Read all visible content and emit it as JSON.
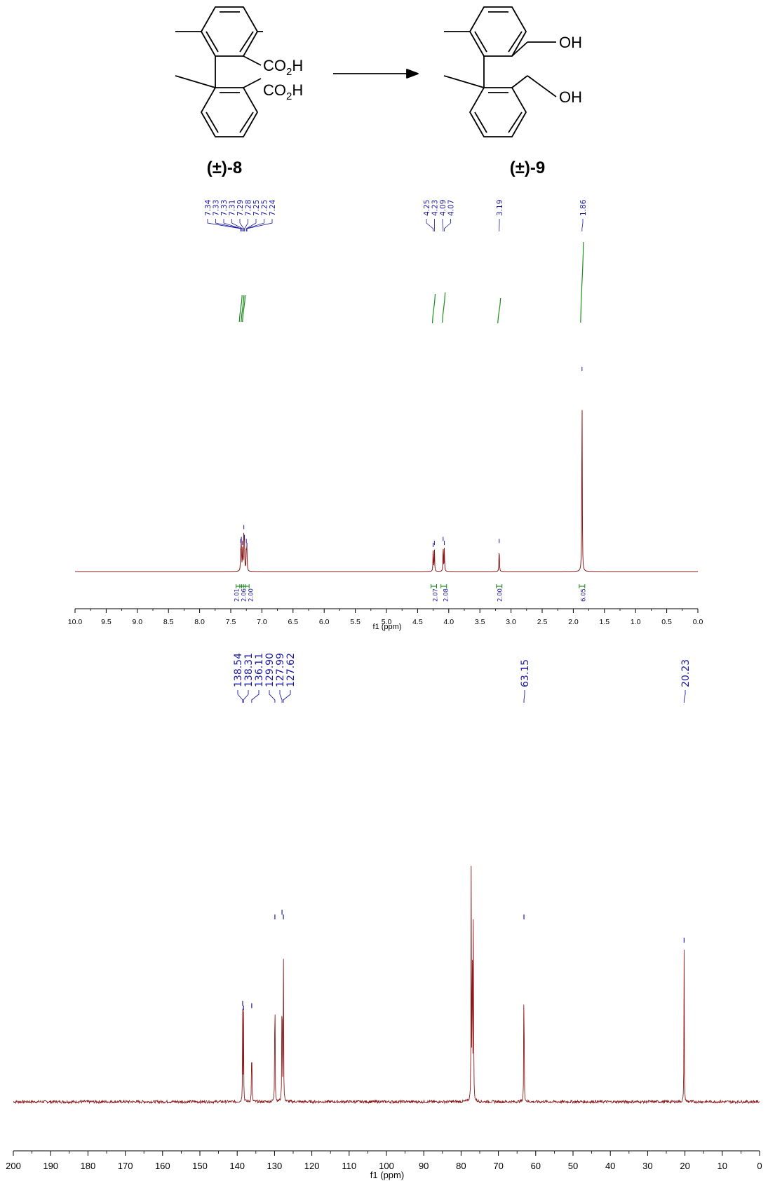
{
  "scheme": {
    "reactant_label": "(±)-8",
    "product_label": "(±)-9",
    "reactant_groups": {
      "acid1_pre": "CO",
      "acid1_sub": "2",
      "acid1_post": "H",
      "acid2_pre": "CO",
      "acid2_sub": "2",
      "acid2_post": "H"
    },
    "product_groups": {
      "oh1": "OH",
      "oh2": "OH"
    }
  },
  "colors": {
    "spectrum": "#8b1a1a",
    "peak_label": "#1a1aa0",
    "integral": "#1e8c1e",
    "axis": "#000000"
  },
  "chart_data": [
    {
      "type": "line",
      "title": "",
      "xlabel": "f1 (ppm)",
      "xlim": [
        10.0,
        0.0
      ],
      "x_ticks": [
        "10.0",
        "9.5",
        "9.0",
        "8.5",
        "8.0",
        "7.5",
        "7.0",
        "6.5",
        "6.0",
        "5.5",
        "5.0",
        "4.5",
        "4.0",
        "3.5",
        "3.0",
        "2.5",
        "2.0",
        "1.5",
        "1.0",
        "0.5",
        "0.0"
      ],
      "peak_labels": [
        "7.34",
        "7.33",
        "7.33",
        "7.31",
        "7.29",
        "7.28",
        "7.25",
        "7.25",
        "7.24",
        "4.25",
        "4.23",
        "4.09",
        "4.07",
        "3.19",
        "1.86"
      ],
      "peaks": [
        {
          "x": 7.34,
          "y": 0.13
        },
        {
          "x": 7.33,
          "y": 0.14
        },
        {
          "x": 7.31,
          "y": 0.12
        },
        {
          "x": 7.29,
          "y": 0.2
        },
        {
          "x": 7.28,
          "y": 0.15
        },
        {
          "x": 7.25,
          "y": 0.13
        },
        {
          "x": 7.24,
          "y": 0.11
        },
        {
          "x": 4.25,
          "y": 0.11
        },
        {
          "x": 4.23,
          "y": 0.12
        },
        {
          "x": 4.09,
          "y": 0.14
        },
        {
          "x": 4.07,
          "y": 0.12
        },
        {
          "x": 3.19,
          "y": 0.13
        },
        {
          "x": 1.86,
          "y": 1.0
        }
      ],
      "integrals": [
        {
          "x": 7.34,
          "value": "2.01"
        },
        {
          "x": 7.29,
          "value": "2.06"
        },
        {
          "x": 7.25,
          "value": "2.00"
        },
        {
          "x": 4.24,
          "value": "2.07"
        },
        {
          "x": 4.08,
          "value": "2.08"
        },
        {
          "x": 3.19,
          "value": "2.00"
        },
        {
          "x": 1.86,
          "value": "6.05"
        }
      ]
    },
    {
      "type": "line",
      "title": "",
      "xlabel": "f1 (ppm)",
      "xlim": [
        200,
        0
      ],
      "x_ticks": [
        "200",
        "190",
        "180",
        "170",
        "160",
        "150",
        "140",
        "130",
        "120",
        "110",
        "100",
        "90",
        "80",
        "70",
        "60",
        "50",
        "40",
        "30",
        "20",
        "10",
        "0"
      ],
      "peak_labels": [
        "138.54",
        "138.31",
        "136.11",
        "129.90",
        "127.99",
        "127.62",
        "63.15",
        "20.23"
      ],
      "peaks": [
        {
          "x": 138.54,
          "y": 0.39
        },
        {
          "x": 138.31,
          "y": 0.37
        },
        {
          "x": 136.11,
          "y": 0.38
        },
        {
          "x": 129.9,
          "y": 0.76
        },
        {
          "x": 127.99,
          "y": 0.78
        },
        {
          "x": 127.62,
          "y": 0.76
        },
        {
          "x": 77.3,
          "y": 1.0
        },
        {
          "x": 77.0,
          "y": 1.0
        },
        {
          "x": 76.7,
          "y": 0.99
        },
        {
          "x": 63.15,
          "y": 0.76
        },
        {
          "x": 20.23,
          "y": 0.66
        }
      ]
    }
  ]
}
